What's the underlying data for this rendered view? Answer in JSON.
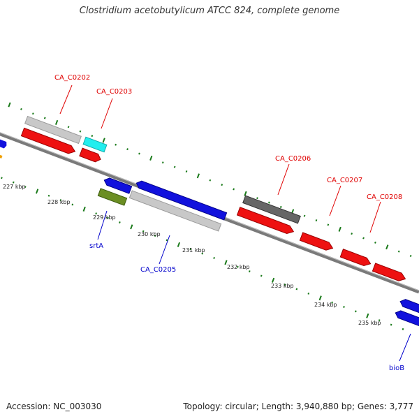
{
  "title": "Clostridium acetobutylicum ATCC 824, complete genome",
  "footer": {
    "accession": "Accession: NC_003030",
    "summary": "Topology: circular; Length: 3,940,880 bp; Genes: 3,777"
  },
  "colors": {
    "backbone": "#7a7a7a",
    "ticks": "#1a7a1a",
    "label_forward": "#e00000",
    "label_reverse": "#0000cc"
  },
  "kbp_labels": [
    "227 kbp",
    "228 kbp",
    "229 kbp",
    "230 kbp",
    "231 kbp",
    "232 kbp",
    "233 kbp",
    "234 kbp",
    "235 kbp"
  ],
  "gene_labels": [
    {
      "id": "ca_c0202",
      "text": "CA_C0202",
      "strand": "forward"
    },
    {
      "id": "ca_c0203",
      "text": "CA_C0203",
      "strand": "forward"
    },
    {
      "id": "ca_c0206",
      "text": "CA_C0206",
      "strand": "forward"
    },
    {
      "id": "ca_c0207",
      "text": "CA_C0207",
      "strand": "forward"
    },
    {
      "id": "ca_c0208",
      "text": "CA_C0208",
      "strand": "forward"
    },
    {
      "id": "srta",
      "text": "srtA",
      "strand": "reverse"
    },
    {
      "id": "ca_c0205",
      "text": "CA_C0205",
      "strand": "reverse"
    },
    {
      "id": "biob",
      "text": "bioB",
      "strand": "reverse"
    }
  ]
}
